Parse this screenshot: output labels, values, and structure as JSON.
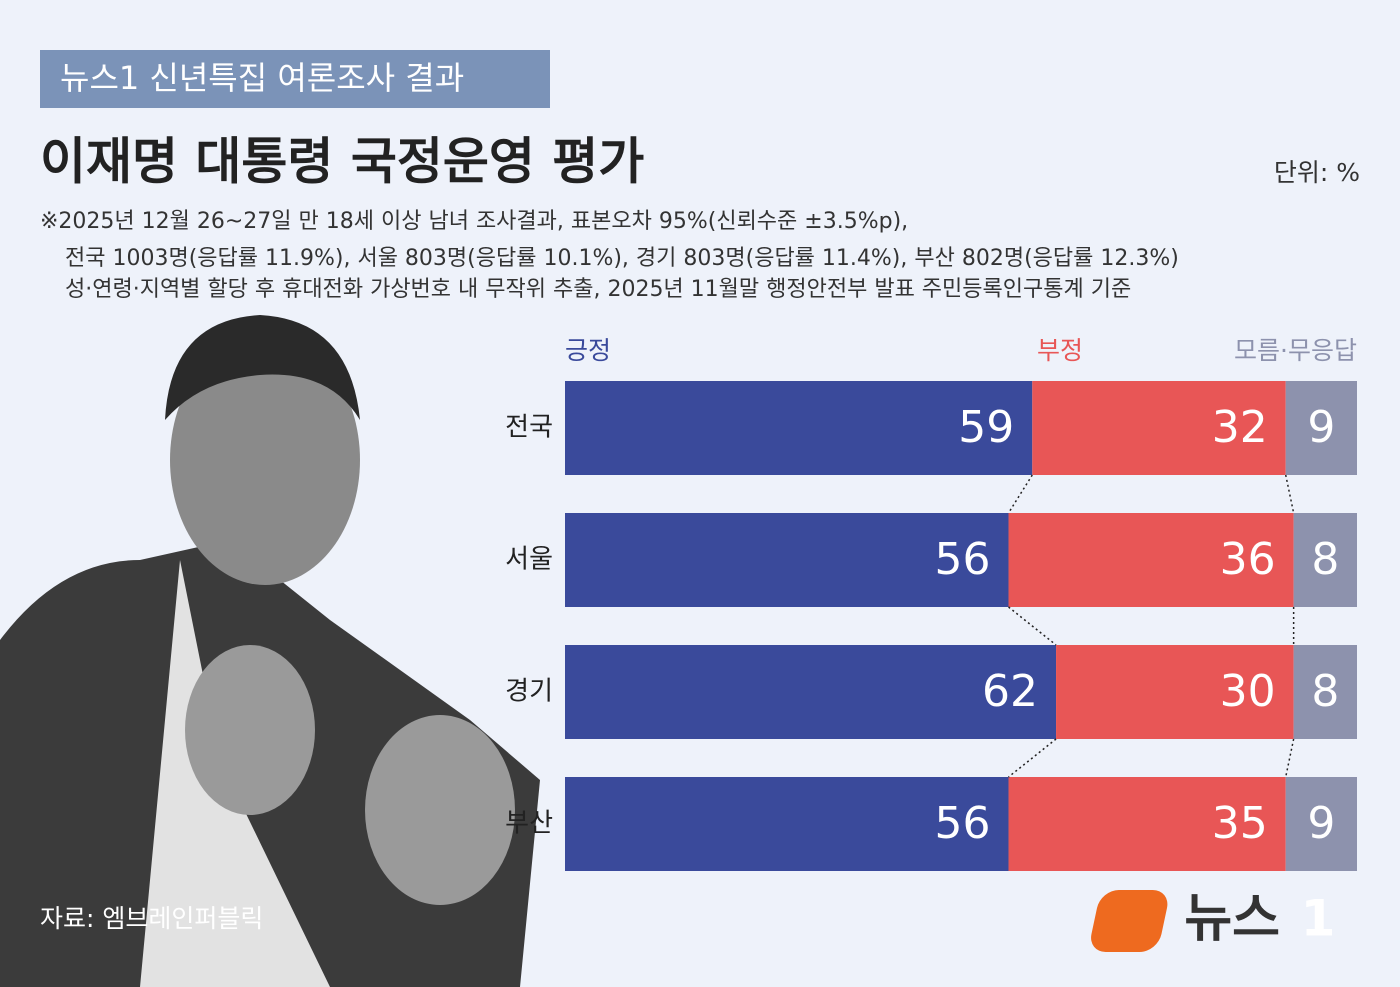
{
  "header": {
    "tag": "뉴스1 신년특집 여론조사 결과",
    "title": "이재명 대통령 국정운영 평가",
    "unit": "단위: %",
    "notes": [
      "※2025년 12월 26~27일 만 18세 이상 남녀 조사결과, 표본오차 95%(신뢰수준 ±3.5%p),",
      "전국 1003명(응답률 11.9%), 서울  803명(응답률 10.1%), 경기 803명(응답률 11.4%), 부산 802명(응답률 12.3%)",
      "성·연령·지역별 할당 후 휴대전화 가상번호 내 무작위 추출,  2025년 11월말 행정안전부 발표 주민등록인구통계 기준"
    ]
  },
  "chart_data": {
    "type": "stacked-bar-h",
    "categories": [
      "전국",
      "서울",
      "경기",
      "부산"
    ],
    "xlim": [
      0,
      100
    ],
    "series": [
      {
        "name": "긍정",
        "color": "#3a4a9b",
        "values": [
          59,
          56,
          62,
          56
        ]
      },
      {
        "name": "부정",
        "color": "#e85656",
        "values": [
          32,
          36,
          30,
          35
        ]
      },
      {
        "name": "모름·무응답",
        "color": "#8d92ad",
        "values": [
          9,
          8,
          8,
          9
        ]
      }
    ]
  },
  "footer": {
    "source": "자료: 엠브레인퍼블릭",
    "logo": "뉴스",
    "logo_mark": "1"
  }
}
